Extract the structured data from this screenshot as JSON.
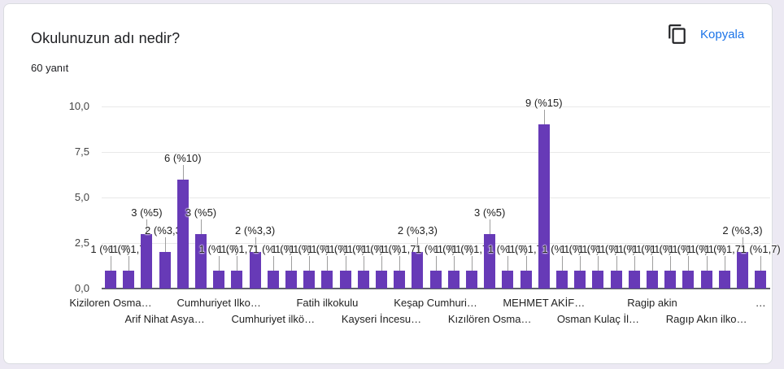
{
  "header": {
    "title": "Okulunuzun adı nedir?",
    "response_count": "60 yanıt",
    "copy_label": "Kopyala",
    "copy_icon": "copy-icon"
  },
  "colors": {
    "bar": "#673ab7",
    "link": "#1a73e8",
    "page_bg": "#ece9f3"
  },
  "chart_data": {
    "type": "bar",
    "title": "Okulunuzun adı nedir?",
    "subtitle": "60 yanıt",
    "xlabel": "",
    "ylabel": "",
    "ylim": [
      0,
      10
    ],
    "yticks": [
      "0,0",
      "2,5",
      "5,0",
      "7,5",
      "10,0"
    ],
    "grid": true,
    "legend": null,
    "categories": [
      "Kiziloren Osma…",
      "",
      "",
      "Arif Nihat Asya…",
      "",
      "",
      "Cumhuriyet Ilko…",
      "",
      "",
      "Cumhuriyet ilkö…",
      "",
      "",
      "Fatih ilkokulu",
      "",
      "",
      "Kayseri İncesu…",
      "",
      "",
      "Keşap Cumhuri…",
      "",
      "",
      "Kızılören Osma…",
      "",
      "",
      "MEHMET AKİF…",
      "",
      "",
      "Osman Kulaç İl…",
      "",
      "",
      "Ragip akin",
      "",
      "",
      "Ragıp Akın ilko…",
      "",
      "",
      "…"
    ],
    "visible_x_labels": [
      {
        "index": 0,
        "row": 1,
        "text": "Kiziloren Osma…"
      },
      {
        "index": 3,
        "row": 2,
        "text": "Arif Nihat Asya…"
      },
      {
        "index": 6,
        "row": 1,
        "text": "Cumhuriyet Ilko…"
      },
      {
        "index": 9,
        "row": 2,
        "text": "Cumhuriyet ilkö…"
      },
      {
        "index": 12,
        "row": 1,
        "text": "Fatih ilkokulu"
      },
      {
        "index": 15,
        "row": 2,
        "text": "Kayseri İncesu…"
      },
      {
        "index": 18,
        "row": 1,
        "text": "Keşap Cumhuri…"
      },
      {
        "index": 21,
        "row": 2,
        "text": "Kızılören Osma…"
      },
      {
        "index": 24,
        "row": 1,
        "text": "MEHMET AKİF…"
      },
      {
        "index": 27,
        "row": 2,
        "text": "Osman Kulaç İl…"
      },
      {
        "index": 30,
        "row": 1,
        "text": "Ragip akin"
      },
      {
        "index": 33,
        "row": 2,
        "text": "Ragıp Akın ilko…"
      },
      {
        "index": 36,
        "row": 1,
        "text": "…"
      }
    ],
    "values": [
      1,
      1,
      3,
      2,
      6,
      3,
      1,
      1,
      2,
      1,
      1,
      1,
      1,
      1,
      1,
      1,
      1,
      2,
      1,
      1,
      1,
      3,
      1,
      1,
      9,
      1,
      1,
      1,
      1,
      1,
      1,
      1,
      1,
      1,
      1,
      2,
      1
    ],
    "data_labels": [
      "1 (%1,7)",
      "1 (%1,7)",
      "3 (%5)",
      "2 (%3,3)",
      "6 (%10)",
      "3 (%5)",
      "1 (%1,7)",
      "1 (%1,7)",
      "2 (%3,3)",
      "1 (%1,7)",
      "1 (%1,7)",
      "1 (%1,7)",
      "1 (%1,7)",
      "1 (%1,7)",
      "1 (%1,7)",
      "1 (%1,7)",
      "1 (%1,7)",
      "2 (%3,3)",
      "1 (%1,7)",
      "1 (%1,7)",
      "1 (%1,7)",
      "3 (%5)",
      "1 (%1,7)",
      "1 (%1,7)",
      "9 (%15)",
      "1 (%1,7)",
      "1 (%1,7)",
      "1 (%1,7)",
      "1 (%1,7)",
      "1 (%1,7)",
      "1 (%1,7)",
      "1 (%1,7)",
      "1 (%1,7)",
      "1 (%1,7)",
      "1 (%1,7)",
      "2 (%3,3)",
      "1 (%1,7)"
    ]
  }
}
